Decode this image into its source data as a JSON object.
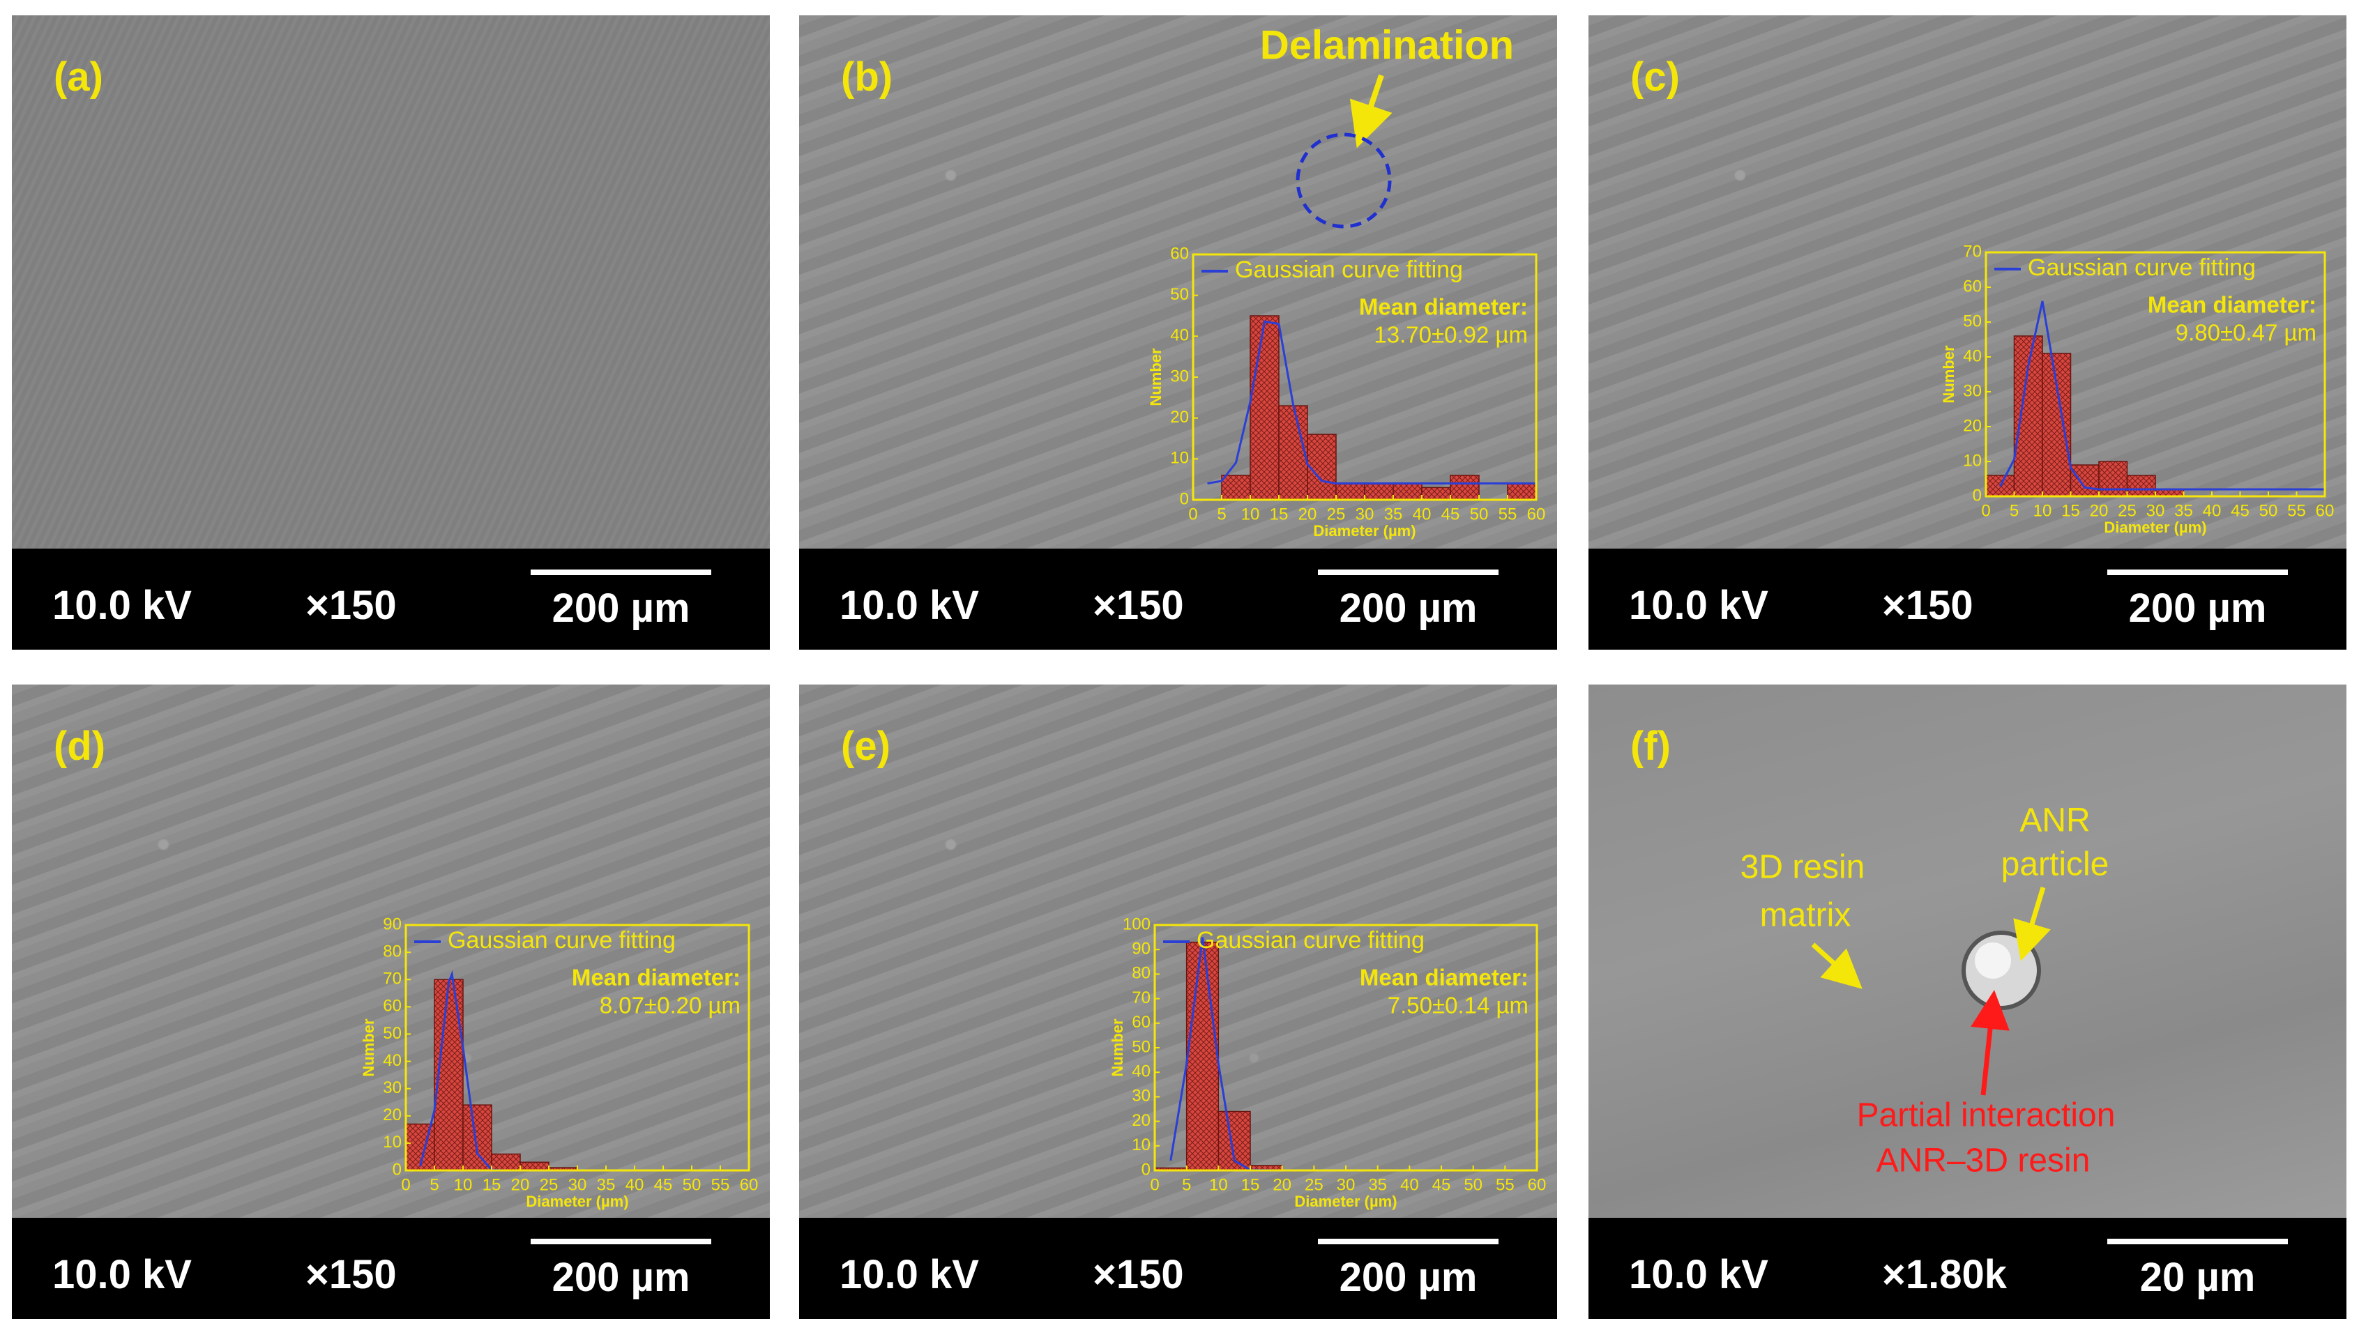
{
  "panels": [
    {
      "label": "(a)",
      "voltage": "10.0 kV",
      "magnification": "×150",
      "scale_bar": "200 µm"
    },
    {
      "label": "(b)",
      "voltage": "10.0 kV",
      "magnification": "×150",
      "scale_bar": "200 µm"
    },
    {
      "label": "(c)",
      "voltage": "10.0 kV",
      "magnification": "×150",
      "scale_bar": "200 µm"
    },
    {
      "label": "(d)",
      "voltage": "10.0 kV",
      "magnification": "×150",
      "scale_bar": "200 µm"
    },
    {
      "label": "(e)",
      "voltage": "10.0 kV",
      "magnification": "×150",
      "scale_bar": "200 µm"
    },
    {
      "label": "(f)",
      "voltage": "10.0 kV",
      "magnification": "×1.80k",
      "scale_bar": "20 µm"
    }
  ],
  "annotations": {
    "delamination": "Delamination",
    "anr_particle": [
      "ANR",
      "particle"
    ],
    "resin_matrix": [
      "3D resin",
      "matrix"
    ],
    "interaction": [
      "Partial interaction",
      "ANR–3D resin"
    ]
  },
  "chart_data": [
    {
      "type": "histogram",
      "xlabel": "Diameter (µm)",
      "ylabel": "Number",
      "color": "#d8473f",
      "bins": [
        5,
        10,
        15,
        20,
        25,
        30,
        35,
        40,
        45,
        50,
        55,
        60
      ],
      "values": [
        6,
        45,
        23,
        16,
        4,
        4,
        4,
        3,
        6,
        0,
        4
      ],
      "fit": {
        "name": "Gaussian curve fitting",
        "color": "#2a3fd6",
        "x": [
          2.5,
          5,
          7.5,
          10,
          12.5,
          15,
          17.5,
          20,
          22.5,
          25,
          30,
          35,
          40,
          45,
          50,
          55,
          60
        ],
        "values": [
          4,
          4.6,
          9.1,
          24,
          43.6,
          43,
          23.3,
          8.7,
          4.6,
          4,
          4,
          4,
          4,
          4,
          4,
          4,
          4
        ]
      },
      "xlim": [
        0,
        60
      ],
      "ylim": [
        0,
        60
      ],
      "xticks": [
        0,
        5,
        10,
        15,
        20,
        25,
        30,
        35,
        40,
        45,
        50,
        55,
        60
      ],
      "yticks": [
        0,
        10,
        20,
        30,
        40,
        50,
        60
      ],
      "annotations": [
        "Mean diameter:",
        "13.70±0.92 µm"
      ]
    },
    {
      "type": "histogram",
      "xlabel": "Diameter (µm)",
      "ylabel": "Number",
      "color": "#d8473f",
      "bins": [
        0,
        5,
        10,
        15,
        20,
        25,
        30,
        35
      ],
      "values": [
        6,
        46,
        41,
        9,
        10,
        6,
        2
      ],
      "fit": {
        "name": "Gaussian curve fitting",
        "color": "#2a3fd6",
        "x": [
          2.5,
          5,
          7.5,
          10,
          12.5,
          15,
          17.5,
          20,
          25,
          30,
          35,
          40,
          45,
          50,
          55,
          60
        ],
        "values": [
          2.8,
          10.6,
          37.5,
          56,
          32,
          8.2,
          2.5,
          2,
          2,
          2,
          2,
          2,
          2,
          2,
          2,
          2
        ]
      },
      "xlim": [
        0,
        60
      ],
      "ylim": [
        0,
        70
      ],
      "xticks": [
        0,
        5,
        10,
        15,
        20,
        25,
        30,
        35,
        40,
        45,
        50,
        55,
        60
      ],
      "yticks": [
        0,
        10,
        20,
        30,
        40,
        50,
        60,
        70
      ],
      "annotations": [
        "Mean diameter:",
        "9.80±0.47 µm"
      ]
    },
    {
      "type": "histogram",
      "xlabel": "Diameter (µm)",
      "ylabel": "Number",
      "color": "#d8473f",
      "bins": [
        0,
        5,
        10,
        15,
        20,
        25,
        30
      ],
      "values": [
        17,
        70,
        24,
        6,
        3,
        1
      ],
      "fit": {
        "name": "Gaussian curve fitting",
        "color": "#2a3fd6",
        "x": [
          2.5,
          5,
          7.5,
          8.07,
          10,
          12.5,
          15,
          17.5,
          20,
          30,
          40,
          50,
          60
        ],
        "values": [
          1.5,
          22,
          69,
          72,
          45,
          6.2,
          0.2,
          0,
          0,
          0,
          0,
          0,
          0
        ]
      },
      "xlim": [
        0,
        60
      ],
      "ylim": [
        0,
        90
      ],
      "xticks": [
        0,
        5,
        10,
        15,
        20,
        25,
        30,
        35,
        40,
        45,
        50,
        55,
        60
      ],
      "yticks": [
        0,
        10,
        20,
        30,
        40,
        50,
        60,
        70,
        80,
        90
      ],
      "annotations": [
        "Mean diameter:",
        "8.07±0.20 µm"
      ]
    },
    {
      "type": "histogram",
      "xlabel": "Diameter (µm)",
      "ylabel": "Number",
      "color": "#d8473f",
      "bins": [
        0,
        5,
        10,
        15,
        20
      ],
      "values": [
        1,
        93,
        24,
        2
      ],
      "fit": {
        "name": "Gaussian curve fitting",
        "color": "#2a3fd6",
        "x": [
          2.5,
          5,
          7.5,
          10,
          12.5,
          15,
          20,
          30,
          40,
          50,
          60
        ],
        "values": [
          4,
          43.5,
          95,
          43.5,
          4,
          0.2,
          0,
          0,
          0,
          0,
          0
        ]
      },
      "xlim": [
        0,
        60
      ],
      "ylim": [
        0,
        100
      ],
      "xticks": [
        0,
        5,
        10,
        15,
        20,
        25,
        30,
        35,
        40,
        45,
        50,
        55,
        60
      ],
      "yticks": [
        0,
        10,
        20,
        30,
        40,
        50,
        60,
        70,
        80,
        90,
        100
      ],
      "annotations": [
        "Mean diameter:",
        "7.50±0.14 µm"
      ]
    }
  ]
}
